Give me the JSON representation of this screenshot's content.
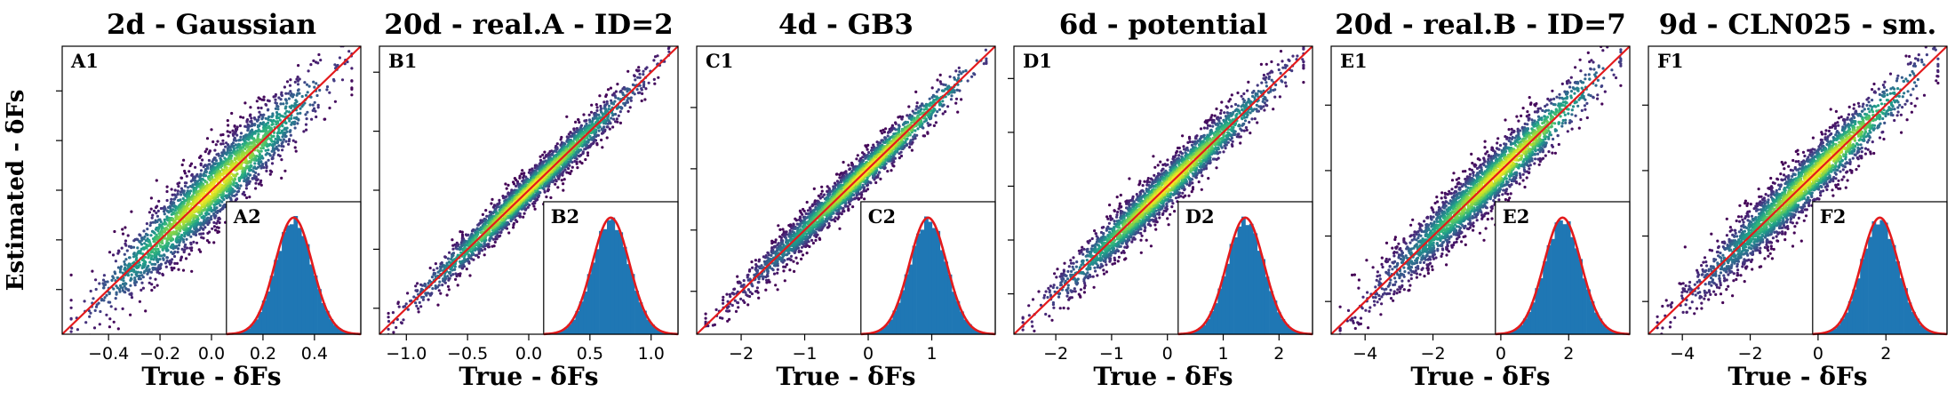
{
  "figure": {
    "shared_ylabel": "Estimated - δFs"
  },
  "chart_data": [
    {
      "type": "scatter",
      "title": "2d - Gaussian",
      "xlabel": "True - δFs",
      "ylabel": "Estimated - δFs",
      "xlim": [
        -0.58,
        0.58
      ],
      "ylim": [
        -0.58,
        0.58
      ],
      "xticks": [
        -0.4,
        -0.2,
        0.0,
        0.2,
        0.4
      ],
      "xticklabels": [
        "−0.4",
        "−0.2",
        "0.0",
        "0.2",
        "0.4"
      ],
      "yticks": [
        -0.4,
        -0.2,
        0.0,
        0.2,
        0.4
      ],
      "scatter_label": "A1",
      "spread": 0.14,
      "colormap": "viridis",
      "reference_line": "y = x",
      "inset": {
        "label": "A2",
        "type": "histogram",
        "mean": 0.0,
        "std": 0.14,
        "overlay": "Gaussian fit"
      }
    },
    {
      "type": "scatter",
      "title": "20d - real.A - ID=2",
      "xlabel": "True - δFs",
      "ylabel": "Estimated - δFs",
      "xlim": [
        -1.22,
        1.22
      ],
      "ylim": [
        -1.22,
        1.22
      ],
      "xticks": [
        -1.0,
        -0.5,
        0.0,
        0.5,
        1.0
      ],
      "xticklabels": [
        "−1.0",
        "−0.5",
        "0.0",
        "0.5",
        "1.0"
      ],
      "yticks": [
        -1.0,
        -0.5,
        0.0,
        0.5,
        1.0
      ],
      "scatter_label": "B1",
      "spread": 0.14,
      "colormap": "viridis",
      "reference_line": "y = x",
      "inset": {
        "label": "B2",
        "type": "histogram",
        "mean": 0.0,
        "std": 0.32,
        "overlay": "Gaussian fit"
      }
    },
    {
      "type": "scatter",
      "title": "4d - GB3",
      "xlabel": "True - δFs",
      "ylabel": "Estimated - δFs",
      "xlim": [
        -2.7,
        2.0
      ],
      "ylim": [
        -2.7,
        2.0
      ],
      "xticks": [
        -2,
        -1,
        0,
        1
      ],
      "xticklabels": [
        "−2",
        "−1",
        "0",
        "1"
      ],
      "yticks": [
        -2,
        -1,
        0,
        1
      ],
      "scatter_label": "C1",
      "spread": 0.28,
      "colormap": "viridis",
      "reference_line": "y = x",
      "inset": {
        "label": "C2",
        "type": "histogram",
        "mean": -0.2,
        "std": 0.62,
        "overlay": "Gaussian fit"
      }
    },
    {
      "type": "scatter",
      "title": "6d - potential",
      "xlabel": "True - δFs",
      "ylabel": "Estimated - δFs",
      "xlim": [
        -2.75,
        2.6
      ],
      "ylim": [
        -2.75,
        2.6
      ],
      "xticks": [
        -2,
        -1,
        0,
        1,
        2
      ],
      "xticklabels": [
        "−2",
        "−1",
        "0",
        "1",
        "2"
      ],
      "yticks": [
        -2,
        -1,
        0,
        1,
        2
      ],
      "scatter_label": "D1",
      "spread": 0.4,
      "colormap": "viridis",
      "reference_line": "y = x",
      "inset": {
        "label": "D2",
        "type": "histogram",
        "mean": 0.0,
        "std": 0.75,
        "overlay": "Gaussian fit"
      }
    },
    {
      "type": "scatter",
      "title": "20d - real.B - ID=7",
      "xlabel": "True - δFs",
      "ylabel": "Estimated - δFs",
      "xlim": [
        -5.0,
        3.8
      ],
      "ylim": [
        -5.0,
        3.8
      ],
      "xticks": [
        -4,
        -2,
        0,
        2
      ],
      "xticklabels": [
        "−4",
        "−2",
        "0",
        "2"
      ],
      "yticks": [
        -4,
        -2,
        0,
        2
      ],
      "scatter_label": "E1",
      "spread": 0.8,
      "colormap": "viridis",
      "reference_line": "y = x",
      "inset": {
        "label": "E2",
        "type": "histogram",
        "mean": -0.6,
        "std": 1.2,
        "overlay": "Gaussian fit"
      }
    },
    {
      "type": "scatter",
      "title": "9d - CLN025 - sm.",
      "xlabel": "True - δFs",
      "ylabel": "Estimated - δFs",
      "xlim": [
        -5.0,
        3.8
      ],
      "ylim": [
        -5.0,
        3.8
      ],
      "xticks": [
        -4,
        -2,
        0,
        2
      ],
      "xticklabels": [
        "−4",
        "−2",
        "0",
        "2"
      ],
      "yticks": [
        -4,
        -2,
        0,
        2
      ],
      "scatter_label": "F1",
      "spread": 0.8,
      "colormap": "viridis",
      "reference_line": "y = x",
      "inset": {
        "label": "F2",
        "type": "histogram",
        "mean": -0.6,
        "std": 1.2,
        "overlay": "Gaussian fit"
      }
    }
  ]
}
